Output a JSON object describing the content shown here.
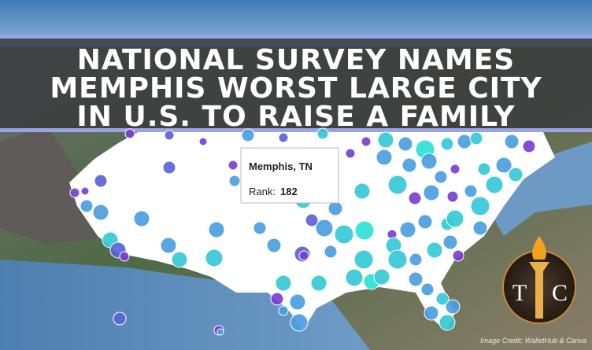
{
  "headline": {
    "lines": [
      "NATIONAL SURVEY NAMES",
      "MEMPHIS WORST LARGE CITY",
      "IN U.S. TO RAISE A FAMILY"
    ]
  },
  "tooltip": {
    "city": "Memphis, TN",
    "rank_label": "Rank:",
    "rank": 182
  },
  "logo": {
    "left": "T",
    "right": "C"
  },
  "credit": "Image Credit: WalletHub & Canva"
}
